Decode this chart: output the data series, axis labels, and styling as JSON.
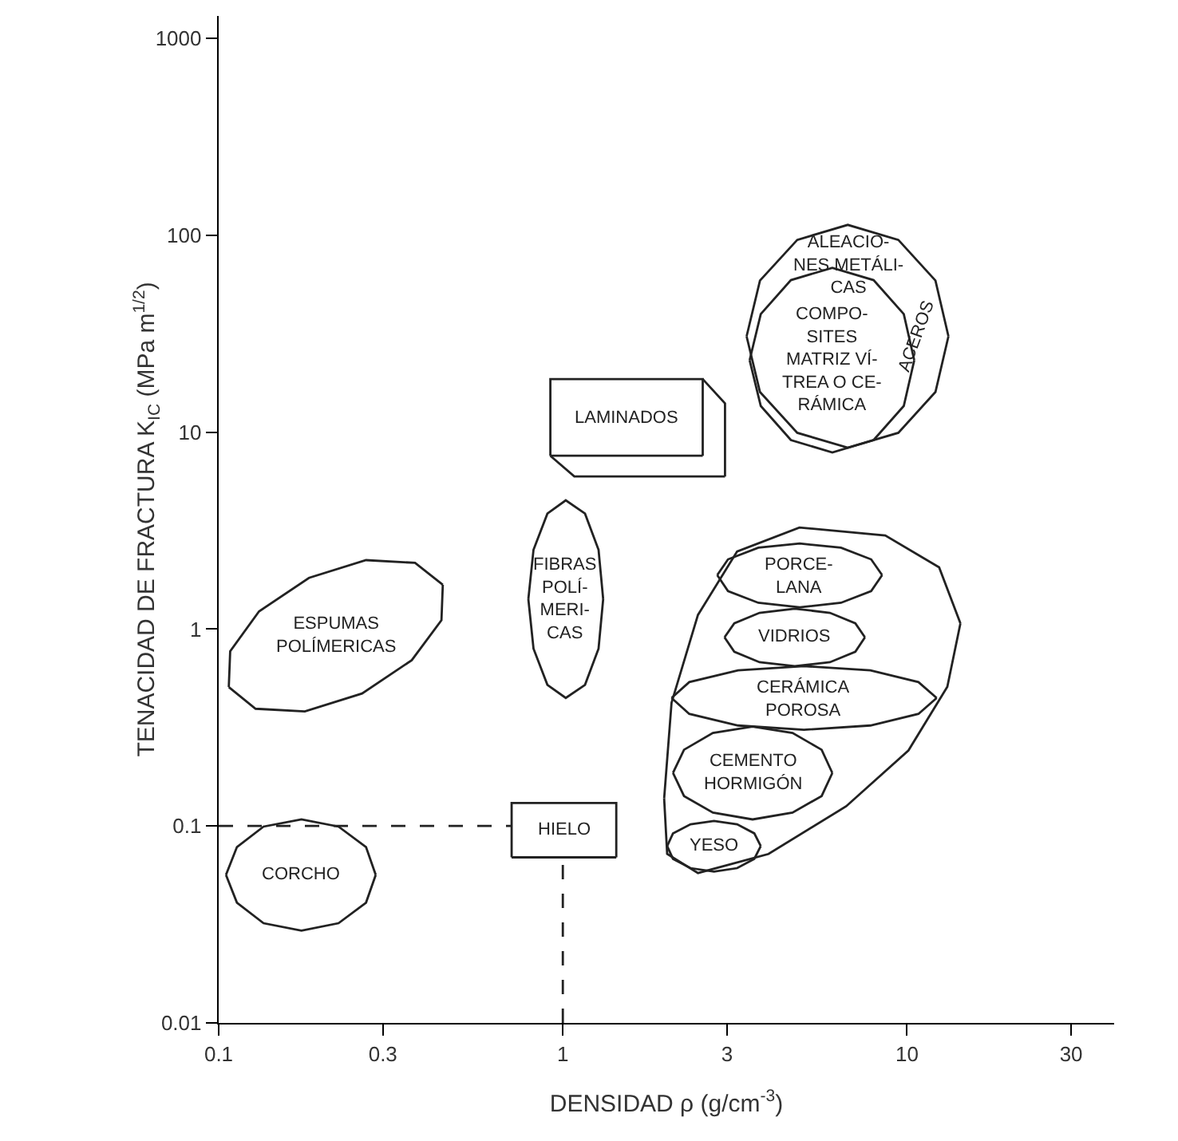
{
  "chart_data": {
    "type": "line",
    "xlabel": "DENSIDAD ρ (g/cm$^{-3}$)",
    "ylabel": "TENACIDAD DE FRACTURA K$_{IC}$ (MPa m$^{1/2}$)",
    "log": "xy",
    "grid": false,
    "legend": false,
    "marker": "none",
    "xlim": [
      0.1,
      40
    ],
    "ylim": [
      0.01,
      1300
    ],
    "xticks": [
      0.1,
      0.3,
      1,
      3,
      10,
      30
    ],
    "yticks": [
      0.01,
      0.1,
      1,
      10,
      100,
      1000
    ],
    "series": [
      {
        "color": "#222222",
        "x": [
          3.42,
          3.74,
          4.8,
          6.73,
          9.44,
          12.1,
          13.2,
          null,
          3.42,
          3.74,
          4.8,
          6.73,
          9.44,
          12.1,
          13.2
        ],
        "values": [
          30.7,
          58.9,
          94.8,
          113,
          94.8,
          58.9,
          30.7,
          null,
          30.7,
          16.0,
          9.93,
          8.34,
          9.93,
          16.0,
          30.7
        ]
      },
      {
        "color": "#222222",
        "name": "COMPO-\nSITES\nMATRIZ VÍ-\nTREA O CE-\nRÁMICA",
        "x": [
          3.49,
          3.76,
          4.6,
          6.07,
          8.0,
          9.79,
          10.5,
          null,
          3.49,
          3.76,
          4.6,
          6.07,
          8.0,
          9.79,
          10.5
        ],
        "values": [
          23.2,
          39.8,
          59.2,
          68.4,
          59.2,
          39.8,
          23.2,
          null,
          23.2,
          13.6,
          9.12,
          7.89,
          9.12,
          13.6,
          23.2
        ]
      },
      {
        "color": "#222222",
        "name": "FIBRAS\nPOLÍ-\nMERI-\nCAS",
        "x": [
          0.794,
          0.822,
          0.902,
          1.02,
          1.16,
          1.27,
          1.31,
          null,
          0.794,
          0.822,
          0.902,
          1.02,
          1.16,
          1.27,
          1.31
        ],
        "values": [
          1.42,
          2.53,
          3.86,
          4.51,
          3.86,
          2.53,
          1.42,
          null,
          1.42,
          0.796,
          0.521,
          0.447,
          0.521,
          0.796,
          1.42
        ]
      },
      {
        "color": "#222222",
        "name": "ESPUMAS\nPOLÍMERICAS",
        "x": [
          0.107,
          0.108,
          0.131,
          0.183,
          0.268,
          0.372,
          0.448,
          null,
          0.107,
          0.128,
          0.178,
          0.261,
          0.364,
          0.444,
          0.448
        ],
        "values": [
          0.508,
          0.772,
          1.23,
          1.82,
          2.24,
          2.17,
          1.68,
          null,
          0.508,
          0.394,
          0.382,
          0.471,
          0.695,
          1.11,
          1.68
        ]
      },
      {
        "color": "#222222",
        "name": "CORCHO",
        "x": [
          0.105,
          0.113,
          0.135,
          0.174,
          0.223,
          0.268,
          0.286,
          null,
          0.105,
          0.113,
          0.135,
          0.174,
          0.223,
          0.268,
          0.286
        ],
        "values": [
          0.0565,
          0.0782,
          0.0993,
          0.108,
          0.0993,
          0.0782,
          0.0565,
          null,
          0.0565,
          0.0408,
          0.0321,
          0.0294,
          0.0321,
          0.0408,
          0.0565
        ]
      },
      {
        "color": "#222222",
        "name": "PORCE-\nLANA",
        "x": [
          2.81,
          3.02,
          3.7,
          4.88,
          6.43,
          7.87,
          8.47,
          null,
          2.81,
          3.02,
          3.7,
          4.88,
          6.43,
          7.87,
          8.47
        ],
        "values": [
          1.88,
          2.26,
          2.59,
          2.72,
          2.59,
          2.26,
          1.88,
          null,
          1.88,
          1.56,
          1.36,
          1.29,
          1.36,
          1.56,
          1.88
        ]
      },
      {
        "color": "#222222",
        "name": "VIDRIOS",
        "x": [
          2.95,
          3.15,
          3.73,
          4.72,
          5.97,
          7.08,
          7.55,
          null,
          2.95,
          3.15,
          3.73,
          4.72,
          5.97,
          7.08,
          7.55
        ],
        "values": [
          0.908,
          1.07,
          1.21,
          1.27,
          1.21,
          1.07,
          0.908,
          null,
          0.908,
          0.767,
          0.679,
          0.649,
          0.679,
          0.767,
          0.908
        ]
      },
      {
        "color": "#222222",
        "name": "CERÁMICA\nPOROSA",
        "x": [
          2.07,
          2.33,
          3.23,
          5.02,
          7.83,
          10.8,
          12.2,
          null,
          2.07,
          2.33,
          3.23,
          5.02,
          7.83,
          10.8,
          12.2
        ],
        "values": [
          0.447,
          0.538,
          0.617,
          0.649,
          0.617,
          0.538,
          0.447,
          null,
          0.447,
          0.371,
          0.324,
          0.308,
          0.324,
          0.371,
          0.447
        ]
      },
      {
        "color": "#222222",
        "name": "CEMENTO\nHORMIGÓN",
        "x": [
          2.09,
          2.25,
          2.73,
          3.56,
          4.65,
          5.65,
          6.07,
          null,
          2.09,
          2.25,
          2.73,
          3.56,
          4.65,
          5.65,
          6.07
        ],
        "values": [
          0.186,
          0.244,
          0.297,
          0.32,
          0.297,
          0.244,
          0.186,
          null,
          0.186,
          0.142,
          0.117,
          0.108,
          0.117,
          0.142,
          0.186
        ]
      },
      {
        "color": "#222222",
        "name": "YESO",
        "x": [
          2.01,
          2.09,
          2.35,
          2.75,
          3.21,
          3.6,
          3.76,
          null,
          2.01,
          2.09,
          2.35,
          2.75,
          3.21,
          3.6,
          3.76
        ],
        "values": [
          0.0791,
          0.0918,
          0.102,
          0.106,
          0.102,
          0.0918,
          0.0791,
          null,
          0.0791,
          0.0681,
          0.0611,
          0.0587,
          0.0611,
          0.0681,
          0.0791
        ]
      },
      {
        "color": "#222222",
        "x": [
          1.97,
          2.07,
          2.47,
          3.21,
          4.87,
          8.65,
          12.4,
          14.3,
          null,
          1.97,
          2.01,
          2.47,
          3.96,
          6.66,
          10.1,
          13.1,
          14.3
        ],
        "values": [
          0.138,
          0.423,
          1.18,
          2.48,
          3.28,
          2.99,
          2.06,
          1.07,
          null,
          0.138,
          0.0721,
          0.0577,
          0.0721,
          0.126,
          0.242,
          0.509,
          1.07
        ]
      },
      {
        "color": "#222222",
        "name": "LAMINADOS",
        "x": [
          0.92,
          0.92,
          2.55,
          2.55
        ],
        "values": [
          7.59,
          18.6,
          18.6,
          7.59
        ]
      },
      {
        "color": "#222222",
        "x": [
          0.92,
          2.55
        ],
        "values": [
          7.59,
          7.59
        ]
      },
      {
        "color": "#222222",
        "x": [
          0.92,
          1.08,
          2.96
        ],
        "values": [
          7.59,
          5.96,
          5.96
        ]
      },
      {
        "color": "#222222",
        "x": [
          2.55,
          2.96,
          2.96
        ],
        "values": [
          18.6,
          14.0,
          5.96
        ]
      },
      {
        "color": "#222222",
        "name": "HIELO",
        "x": [
          0.71,
          0.71,
          1.43,
          1.43
        ],
        "values": [
          0.0693,
          0.131,
          0.131,
          0.0693
        ]
      },
      {
        "color": "#222222",
        "x": [
          0.71,
          1.43
        ],
        "values": [
          0.0693,
          0.0693
        ]
      },
      {
        "color": "#222222",
        "line_style": "dashed",
        "x": [
          0.1,
          0.71
        ],
        "values": [
          0.1,
          0.1
        ]
      },
      {
        "color": "#222222",
        "line_style": "dashed",
        "x": [
          1,
          1
        ],
        "values": [
          0.01,
          0.0693
        ]
      }
    ],
    "annotations": [
      {
        "text": "ALEACIO-\nNES METÁLI-\nCAS",
        "x": 6.73,
        "y": 113
      },
      {
        "text": "ACEROS",
        "x": 13.2,
        "y": 30.7
      }
    ]
  }
}
